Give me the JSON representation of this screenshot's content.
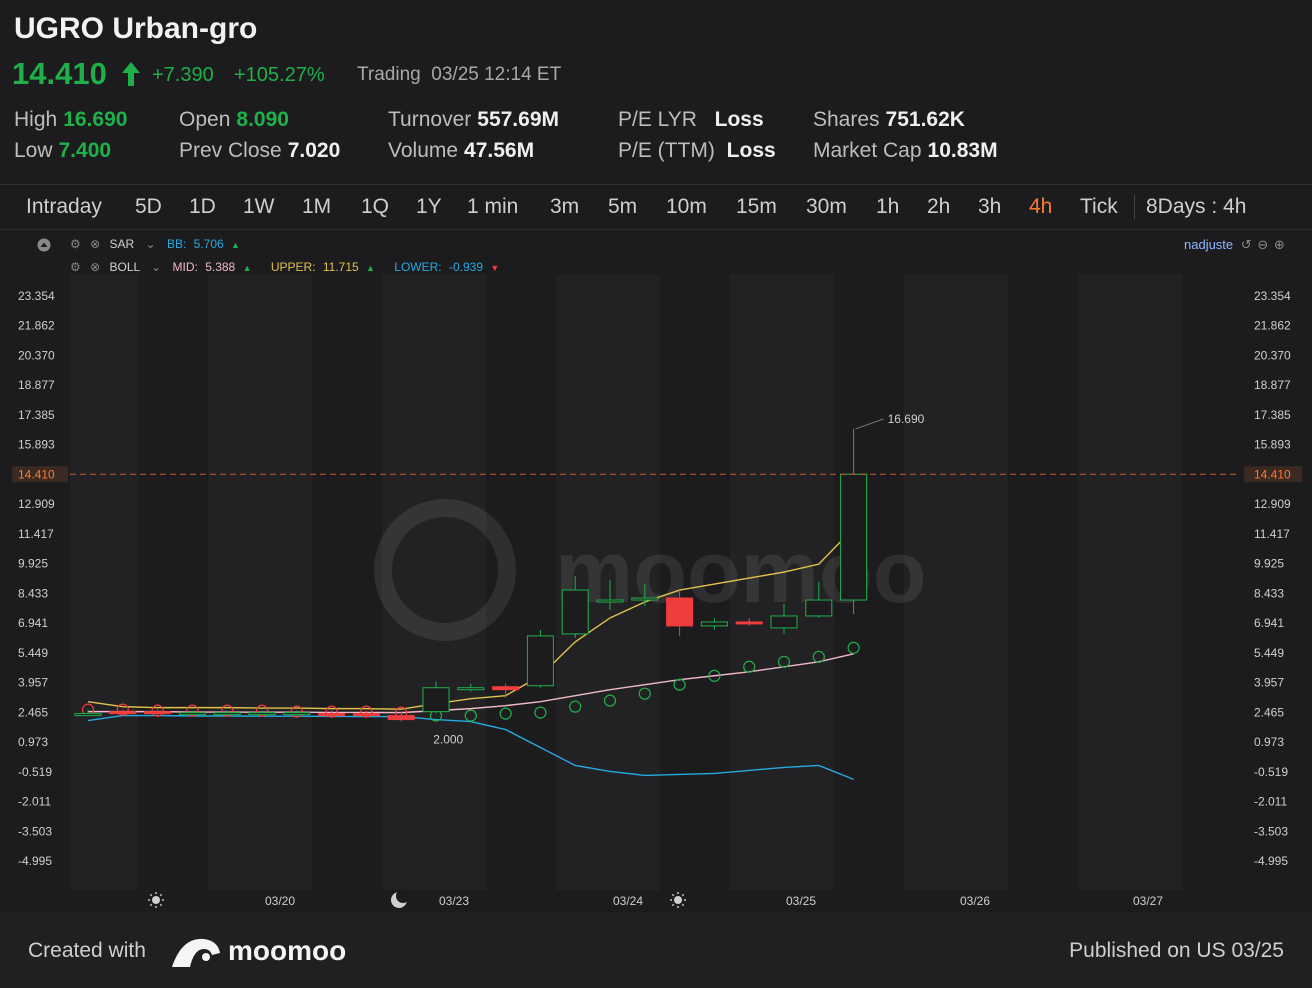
{
  "header": {
    "title": "UGRO Urban-gro",
    "price": "14.410",
    "change": "+7.390",
    "change_pct": "+105.27%",
    "trading": "Trading",
    "datetime": "03/25 12:14 ET",
    "stats": [
      {
        "label": "High",
        "value": "16.690"
      },
      {
        "label": "Low",
        "value": "7.400"
      },
      {
        "label": "Open",
        "value": "8.090"
      },
      {
        "label": "Prev Close",
        "value": "7.020"
      },
      {
        "label": "Turnover",
        "value": "557.69M"
      },
      {
        "label": "Volume",
        "value": "47.56M"
      },
      {
        "label": "P/E LYR",
        "value": "Loss"
      },
      {
        "label": "P/E (TTM)",
        "value": "Loss"
      },
      {
        "label": "Shares",
        "value": "751.62K"
      },
      {
        "label": "Market Cap",
        "value": "10.83M"
      }
    ]
  },
  "tabs": [
    "Intraday",
    "5D",
    "1D",
    "1W",
    "1M",
    "1Q",
    "1Y",
    "1 min",
    "3m",
    "5m",
    "10m",
    "15m",
    "30m",
    "1h",
    "2h",
    "3h",
    "4h",
    "Tick",
    "8Days : 4h"
  ],
  "active_tab": "4h",
  "indicators": {
    "sar": {
      "name": "SAR",
      "bb_label": "BB:",
      "bb_value": "5.706"
    },
    "boll": {
      "name": "BOLL",
      "mid_label": "MID:",
      "mid_value": "5.388",
      "upper_label": "UPPER:",
      "upper_value": "11.715",
      "lower_label": "LOWER:",
      "lower_value": "-0.939"
    },
    "user": "nadjuste"
  },
  "colors": {
    "up": "#20b04a",
    "down": "#ef3c3c",
    "upper": "#e3c24a",
    "mid": "#f2b8c6",
    "lower": "#27a9e1",
    "accent": "#ff7a2f"
  },
  "chart_data": {
    "type": "candlestick",
    "y_ticks": [
      "23.354",
      "21.862",
      "20.370",
      "18.877",
      "17.385",
      "15.893",
      "14.410",
      "12.909",
      "11.417",
      "9.925",
      "8.433",
      "6.941",
      "5.449",
      "3.957",
      "2.465",
      "0.973",
      "-0.519",
      "-2.011",
      "-3.503",
      "-4.995"
    ],
    "ylim": [
      -4.995,
      23.354
    ],
    "x_labels": [
      "03/20",
      "03/23",
      "03/24",
      "03/25",
      "03/26",
      "03/27"
    ],
    "current_price": 14.41,
    "high_label": "16.690",
    "low_label": "2.000",
    "candles": [
      {
        "o": 2.4,
        "h": 2.6,
        "l": 2.35,
        "c": 2.4
      },
      {
        "o": 2.5,
        "h": 2.6,
        "l": 2.35,
        "c": 2.4
      },
      {
        "o": 2.5,
        "h": 2.6,
        "l": 2.35,
        "c": 2.4
      },
      {
        "o": 2.45,
        "h": 2.55,
        "l": 2.35,
        "c": 2.45
      },
      {
        "o": 2.45,
        "h": 2.55,
        "l": 2.35,
        "c": 2.45
      },
      {
        "o": 2.45,
        "h": 2.55,
        "l": 2.35,
        "c": 2.45
      },
      {
        "o": 2.45,
        "h": 2.55,
        "l": 2.35,
        "c": 2.45
      },
      {
        "o": 2.4,
        "h": 2.55,
        "l": 2.3,
        "c": 2.3
      },
      {
        "o": 2.4,
        "h": 2.55,
        "l": 2.3,
        "c": 2.3
      },
      {
        "o": 2.3,
        "h": 2.5,
        "l": 2.0,
        "c": 2.1
      },
      {
        "o": 2.5,
        "h": 4.0,
        "l": 2.4,
        "c": 3.7
      },
      {
        "o": 3.6,
        "h": 3.9,
        "l": 3.5,
        "c": 3.7
      },
      {
        "o": 3.75,
        "h": 3.9,
        "l": 3.2,
        "c": 3.6
      },
      {
        "o": 3.8,
        "h": 6.6,
        "l": 3.7,
        "c": 6.3
      },
      {
        "o": 6.4,
        "h": 9.3,
        "l": 6.2,
        "c": 8.6
      },
      {
        "o": 8.0,
        "h": 9.1,
        "l": 7.6,
        "c": 8.1
      },
      {
        "o": 8.1,
        "h": 8.9,
        "l": 7.8,
        "c": 8.2
      },
      {
        "o": 8.2,
        "h": 8.6,
        "l": 6.3,
        "c": 6.8
      },
      {
        "o": 6.8,
        "h": 7.2,
        "l": 6.6,
        "c": 7.0
      },
      {
        "o": 7.0,
        "h": 7.2,
        "l": 6.8,
        "c": 6.9
      },
      {
        "o": 6.7,
        "h": 7.9,
        "l": 6.4,
        "c": 7.3
      },
      {
        "o": 7.3,
        "h": 9.0,
        "l": 7.2,
        "c": 8.1
      },
      {
        "o": 8.1,
        "h": 16.69,
        "l": 7.4,
        "c": 14.41
      }
    ],
    "series": [
      {
        "name": "UPPER",
        "values": [
          3.0,
          2.75,
          2.7,
          2.7,
          2.7,
          2.68,
          2.68,
          2.65,
          2.65,
          2.62,
          2.9,
          3.15,
          3.3,
          4.3,
          6.0,
          7.2,
          8.0,
          8.6,
          8.9,
          9.2,
          9.5,
          9.9,
          11.7
        ]
      },
      {
        "name": "MID",
        "values": [
          2.5,
          2.5,
          2.5,
          2.48,
          2.48,
          2.47,
          2.47,
          2.46,
          2.46,
          2.45,
          2.55,
          2.65,
          2.8,
          3.0,
          3.3,
          3.6,
          3.85,
          4.1,
          4.3,
          4.5,
          4.75,
          5.0,
          5.4
        ]
      },
      {
        "name": "LOWER",
        "values": [
          2.05,
          2.3,
          2.3,
          2.28,
          2.28,
          2.27,
          2.27,
          2.26,
          2.25,
          2.25,
          2.1,
          2.0,
          1.6,
          0.7,
          -0.2,
          -0.5,
          -0.7,
          -0.65,
          -0.6,
          -0.45,
          -0.3,
          -0.2,
          -0.9
        ]
      },
      {
        "name": "SAR",
        "values": [
          2.6,
          2.6,
          2.55,
          2.55,
          2.55,
          2.55,
          2.5,
          2.5,
          2.5,
          2.45,
          2.3,
          2.3,
          2.4,
          2.45,
          2.75,
          3.05,
          3.4,
          3.85,
          4.3,
          4.75,
          5.0,
          5.25,
          5.7
        ]
      }
    ],
    "sar_color_index_switch": 10
  },
  "footer": {
    "created": "Created with",
    "brand": "moomoo",
    "published": "Published on US 03/25"
  }
}
